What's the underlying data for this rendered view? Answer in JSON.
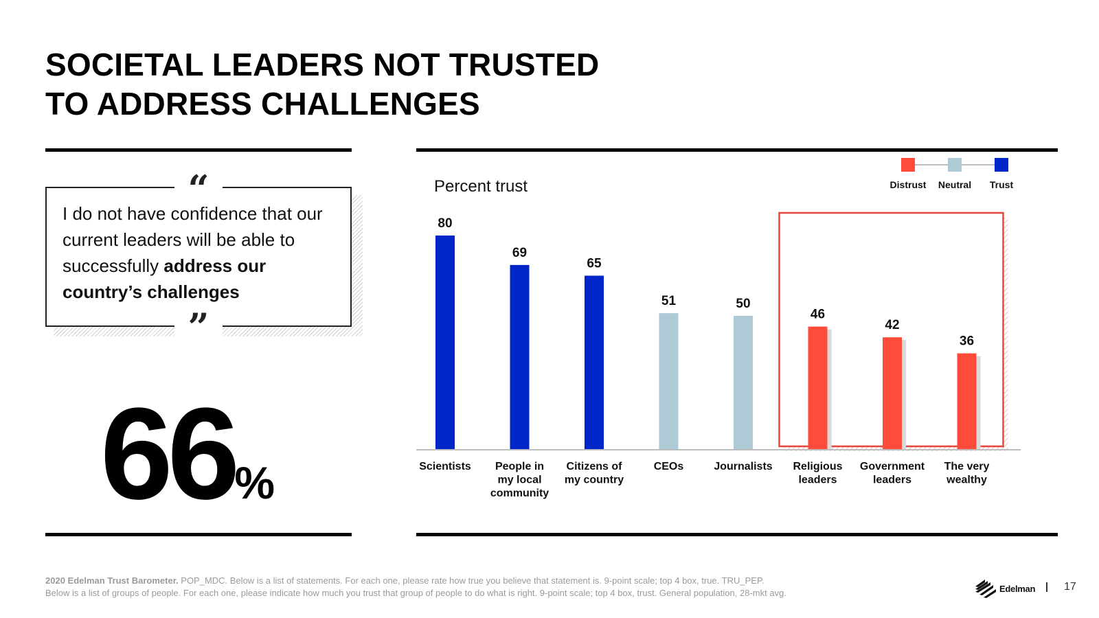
{
  "slide": {
    "title_line1": "SOCIETAL LEADERS NOT TRUSTED",
    "title_line2": "TO ADDRESS CHALLENGES",
    "page_number": "17"
  },
  "quote": {
    "open_mark": "“",
    "close_mark": "”",
    "text_plain": "I do not have confidence that our current leaders will be able to successfully ",
    "text_bold": "address our country’s challenges"
  },
  "stat": {
    "value": "66",
    "unit": "%"
  },
  "chart_data": {
    "type": "bar",
    "title": "Percent trust",
    "categories": [
      [
        "Scientists"
      ],
      [
        "People in",
        "my local",
        "community"
      ],
      [
        "Citizens of",
        "my country"
      ],
      [
        "CEOs"
      ],
      [
        "Journalists"
      ],
      [
        "Religious",
        "leaders"
      ],
      [
        "Government",
        "leaders"
      ],
      [
        "The very",
        "wealthy"
      ]
    ],
    "values": [
      80,
      69,
      65,
      51,
      50,
      46,
      42,
      36
    ],
    "bar_status": [
      "trust",
      "trust",
      "trust",
      "neutral",
      "neutral",
      "distrust",
      "distrust",
      "distrust"
    ],
    "ylim": [
      0,
      100
    ],
    "xlabel": "",
    "ylabel": "",
    "legend": [
      {
        "label": "Distrust",
        "color": "#ff4b3a"
      },
      {
        "label": "Neutral",
        "color": "#aecad6"
      },
      {
        "label": "Trust",
        "color": "#0025c8"
      }
    ],
    "highlight_categories": [
      "Religious leaders",
      "Government leaders",
      "The very wealthy"
    ],
    "highlight_color": "#e8453c"
  },
  "footer": {
    "source_bold": "2020 Edelman Trust Barometer.",
    "line1": " POP_MDC. Below is a list of statements. For each one, please rate how true you believe that statement is. 9-point scale; top 4 box, true. TRU_PEP.",
    "line2": "Below is a list of groups of people. For each one, please indicate how much you trust that group of people to do what is right. 9-point scale; top 4 box, trust. General population, 28-mkt avg.",
    "brand": "Edelman"
  }
}
